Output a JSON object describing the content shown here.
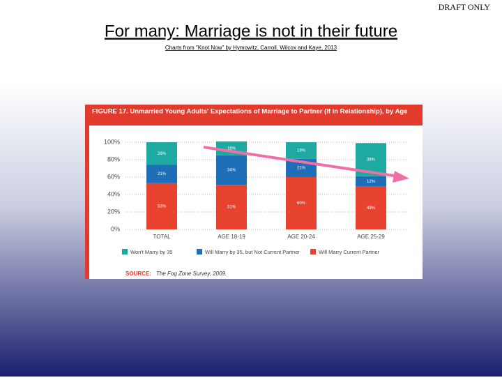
{
  "slide": {
    "draft": "DRAFT ONLY",
    "title": "For many: Marriage is not in their future",
    "subtitle": "Charts from \"Knot Now\" by Hymowitz, Carroll, Wilcox and Kaye, 2013"
  },
  "chart_data": {
    "type": "stacked_bar",
    "title": "FIGURE 17. Unmarried Young Adults' Expectations of Marriage to Partner (If in Relationship), by Age",
    "categories": [
      "TOTAL",
      "AGE 18-19",
      "AGE 20-24",
      "AGE 25-29"
    ],
    "series": [
      {
        "name": "Will Marry Current Partner",
        "color": "#e8432f",
        "values": [
          53,
          51,
          60,
          49
        ],
        "value_labels": [
          "53%",
          "51%",
          "60%",
          "49%"
        ]
      },
      {
        "name": "Will Marry by 35, but Not Current Partner",
        "color": "#1f6fb8",
        "values": [
          21,
          34,
          21,
          12
        ],
        "value_labels": [
          "21%",
          "34%",
          "21%",
          "12%"
        ]
      },
      {
        "name": "Won't Marry by 35",
        "color": "#1fa9a3",
        "values": [
          26,
          16,
          19,
          38
        ],
        "value_labels": [
          "26%",
          "16%",
          "19%",
          "38%"
        ]
      }
    ],
    "ylim": [
      0,
      100
    ],
    "yticks": [
      {
        "value": 0,
        "label": "0%"
      },
      {
        "value": 20,
        "label": "20%"
      },
      {
        "value": 40,
        "label": "40%"
      },
      {
        "value": 60,
        "label": "60%"
      },
      {
        "value": 80,
        "label": "80%"
      },
      {
        "value": 100,
        "label": "100%"
      }
    ],
    "grid": true,
    "source_label": "SOURCE:",
    "source": "The Fog Zone Survey, 2009."
  }
}
